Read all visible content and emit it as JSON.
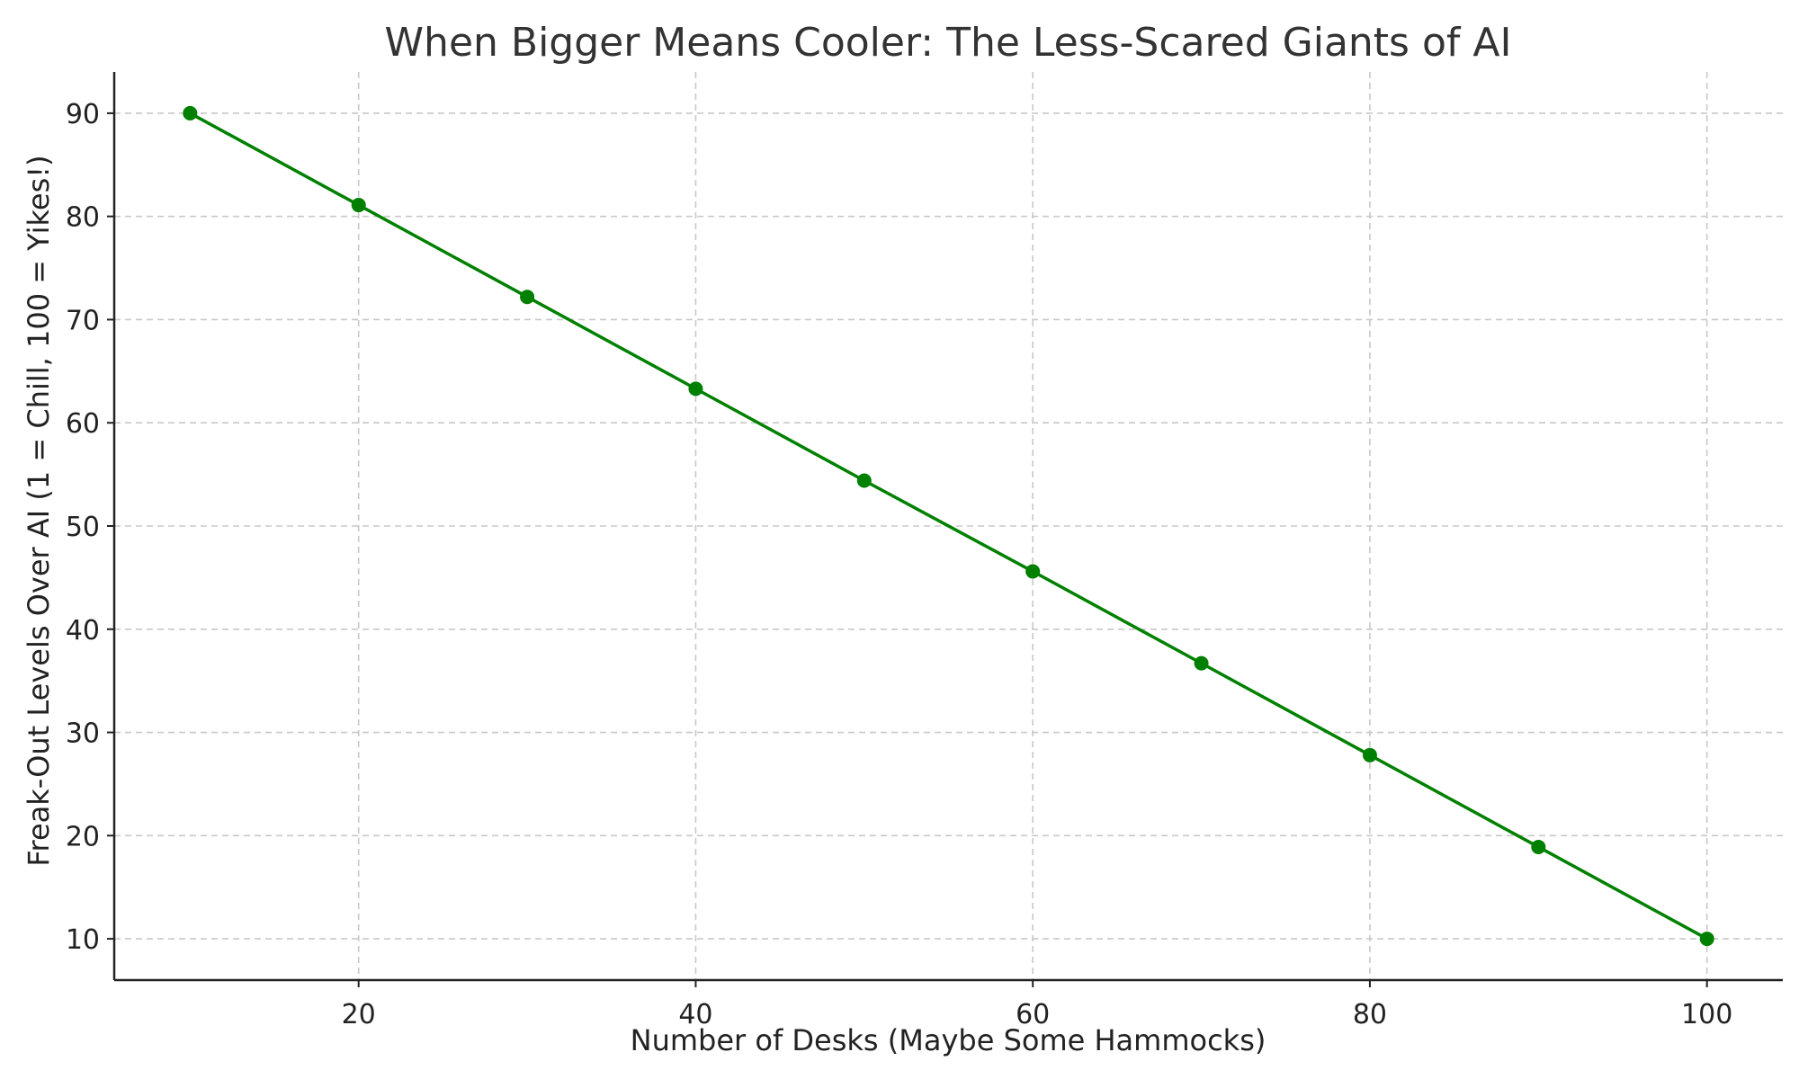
{
  "chart_data": {
    "type": "line",
    "title": "When Bigger Means Cooler: The Less-Scared Giants of AI",
    "xlabel": "Number of Desks (Maybe Some Hammocks)",
    "ylabel": "Freak-Out Levels Over AI (1 = Chill, 100 = Yikes!)",
    "xlim": [
      5.5,
      104.5
    ],
    "ylim": [
      6,
      94
    ],
    "xticks": [
      20,
      40,
      60,
      80,
      100
    ],
    "yticks": [
      10,
      20,
      30,
      40,
      50,
      60,
      70,
      80,
      90
    ],
    "grid": true,
    "legend": "none",
    "series": [
      {
        "color": "#008000",
        "x": [
          10,
          20,
          30,
          40,
          50,
          60,
          70,
          80,
          90,
          100
        ],
        "y": [
          90,
          81.1,
          72.2,
          63.3,
          54.4,
          45.6,
          36.7,
          27.8,
          18.9,
          10
        ]
      }
    ]
  }
}
